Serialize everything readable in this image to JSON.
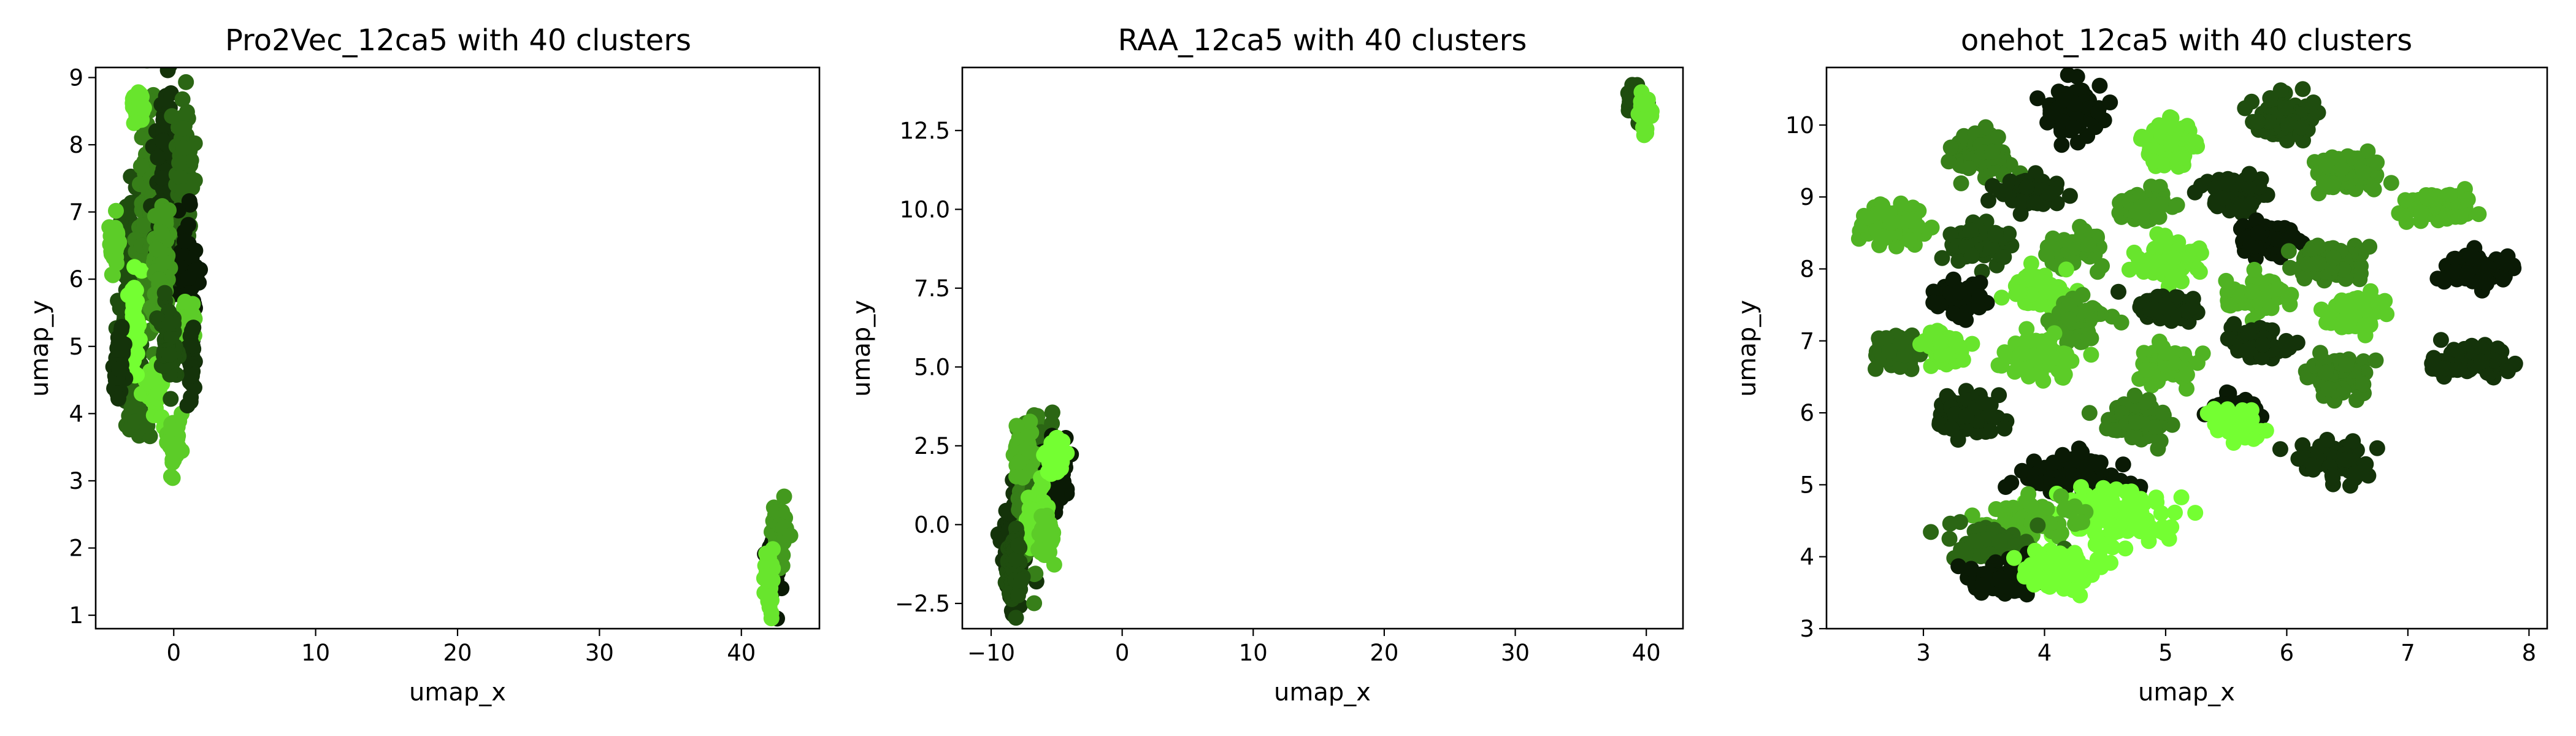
{
  "figure": {
    "background": "#ffffff"
  },
  "palette": [
    "#0a1a05",
    "#14330a",
    "#1f4d0f",
    "#2b6614",
    "#377f19",
    "#43991e",
    "#50b323",
    "#5ccc28",
    "#68e52d",
    "#74ff32"
  ],
  "chart_data": [
    {
      "type": "scatter",
      "title": "Pro2Vec_12ca5 with 40 clusters",
      "xlabel": "umap_x",
      "ylabel": "umap_y",
      "xlim": [
        -5.5,
        45.5
      ],
      "ylim": [
        0.8,
        9.15
      ],
      "xticks": [
        0,
        10,
        20,
        30,
        40
      ],
      "yticks": [
        1,
        2,
        3,
        4,
        5,
        6,
        7,
        8,
        9
      ],
      "grid": false,
      "legend": "none",
      "point_count_approx": 3300,
      "clusters": [
        {
          "x": -3.0,
          "y": 5.6,
          "sx": 0.45,
          "sy": 0.8,
          "n": 150,
          "c": 2
        },
        {
          "x": -1.8,
          "y": 6.8,
          "sx": 0.4,
          "sy": 0.9,
          "n": 140,
          "c": 4
        },
        {
          "x": -0.6,
          "y": 7.5,
          "sx": 0.35,
          "sy": 0.7,
          "n": 120,
          "c": 1
        },
        {
          "x": 0.8,
          "y": 7.4,
          "sx": 0.3,
          "sy": 0.6,
          "n": 110,
          "c": 3
        },
        {
          "x": 1.0,
          "y": 6.0,
          "sx": 0.3,
          "sy": 0.5,
          "n": 90,
          "c": 0
        },
        {
          "x": -2.5,
          "y": 8.55,
          "sx": 0.25,
          "sy": 0.1,
          "n": 45,
          "c": 8
        },
        {
          "x": -4.2,
          "y": 6.5,
          "sx": 0.15,
          "sy": 0.2,
          "n": 40,
          "c": 7
        },
        {
          "x": -2.5,
          "y": 4.0,
          "sx": 0.35,
          "sy": 0.2,
          "n": 60,
          "c": 3
        },
        {
          "x": -1.3,
          "y": 4.4,
          "sx": 0.3,
          "sy": 0.2,
          "n": 50,
          "c": 8
        },
        {
          "x": 0.0,
          "y": 3.6,
          "sx": 0.25,
          "sy": 0.2,
          "n": 45,
          "c": 7
        },
        {
          "x": -2.8,
          "y": 5.4,
          "sx": 0.2,
          "sy": 0.4,
          "n": 50,
          "c": 9
        },
        {
          "x": 1.0,
          "y": 5.3,
          "sx": 0.25,
          "sy": 0.3,
          "n": 50,
          "c": 7
        },
        {
          "x": 1.2,
          "y": 4.7,
          "sx": 0.15,
          "sy": 0.3,
          "n": 40,
          "c": 1
        },
        {
          "x": -1.0,
          "y": 6.2,
          "sx": 0.3,
          "sy": 0.5,
          "n": 80,
          "c": 5
        },
        {
          "x": -0.3,
          "y": 5.0,
          "sx": 0.3,
          "sy": 0.3,
          "n": 60,
          "c": 2
        },
        {
          "x": -3.8,
          "y": 4.8,
          "sx": 0.2,
          "sy": 0.3,
          "n": 40,
          "c": 1
        },
        {
          "x": 42.3,
          "y": 1.7,
          "sx": 0.3,
          "sy": 0.25,
          "n": 50,
          "c": 0
        },
        {
          "x": 42.7,
          "y": 2.2,
          "sx": 0.3,
          "sy": 0.25,
          "n": 50,
          "c": 5
        },
        {
          "x": 42.0,
          "y": 1.6,
          "sx": 0.2,
          "sy": 0.2,
          "n": 30,
          "c": 8
        }
      ]
    },
    {
      "type": "scatter",
      "title": "RAA_12ca5 with 40 clusters",
      "xlabel": "umap_x",
      "ylabel": "umap_y",
      "xlim": [
        -12.2,
        42.8
      ],
      "ylim": [
        -3.3,
        14.5
      ],
      "xticks": [
        -10,
        0,
        10,
        20,
        30,
        40
      ],
      "yticks": [
        -2.5,
        0.0,
        2.5,
        5.0,
        7.5,
        10.0,
        12.5
      ],
      "grid": false,
      "legend": "none",
      "point_count_approx": 1400,
      "clusters": [
        {
          "x": -8.0,
          "y": -0.5,
          "sx": 0.5,
          "sy": 0.9,
          "n": 120,
          "c": 1
        },
        {
          "x": -7.0,
          "y": 1.0,
          "sx": 0.5,
          "sy": 1.0,
          "n": 130,
          "c": 4
        },
        {
          "x": -6.0,
          "y": 1.8,
          "sx": 0.5,
          "sy": 0.6,
          "n": 100,
          "c": 3
        },
        {
          "x": -5.0,
          "y": 1.5,
          "sx": 0.4,
          "sy": 0.5,
          "n": 80,
          "c": 0
        },
        {
          "x": -7.5,
          "y": 2.3,
          "sx": 0.4,
          "sy": 0.4,
          "n": 60,
          "c": 6
        },
        {
          "x": -6.5,
          "y": 0.2,
          "sx": 0.4,
          "sy": 0.5,
          "n": 70,
          "c": 8
        },
        {
          "x": -5.2,
          "y": 2.2,
          "sx": 0.3,
          "sy": 0.3,
          "n": 50,
          "c": 9
        },
        {
          "x": -8.3,
          "y": -1.3,
          "sx": 0.3,
          "sy": 0.5,
          "n": 60,
          "c": 2
        },
        {
          "x": -5.8,
          "y": -0.5,
          "sx": 0.3,
          "sy": 0.4,
          "n": 50,
          "c": 7
        },
        {
          "x": 39.2,
          "y": 13.5,
          "sx": 0.3,
          "sy": 0.25,
          "n": 50,
          "c": 2
        },
        {
          "x": 39.8,
          "y": 13.1,
          "sx": 0.25,
          "sy": 0.25,
          "n": 40,
          "c": 8
        }
      ]
    },
    {
      "type": "scatter",
      "title": "onehot_12ca5 with 40 clusters",
      "xlabel": "umap_x",
      "ylabel": "umap_y",
      "xlim": [
        2.2,
        8.15
      ],
      "ylim": [
        3.0,
        10.8
      ],
      "xticks": [
        3,
        4,
        5,
        6,
        7,
        8
      ],
      "yticks": [
        3,
        4,
        5,
        6,
        7,
        8,
        9,
        10
      ],
      "grid": false,
      "legend": "none",
      "point_count_approx": 4000,
      "clusters": [
        {
          "x": 4.25,
          "y": 10.2,
          "sx": 0.12,
          "sy": 0.16,
          "n": 90,
          "c": 0
        },
        {
          "x": 5.95,
          "y": 10.1,
          "sx": 0.13,
          "sy": 0.14,
          "n": 90,
          "c": 2
        },
        {
          "x": 5.05,
          "y": 9.7,
          "sx": 0.11,
          "sy": 0.16,
          "n": 80,
          "c": 8
        },
        {
          "x": 3.45,
          "y": 9.6,
          "sx": 0.13,
          "sy": 0.12,
          "n": 80,
          "c": 4
        },
        {
          "x": 6.5,
          "y": 9.35,
          "sx": 0.13,
          "sy": 0.12,
          "n": 80,
          "c": 5
        },
        {
          "x": 3.9,
          "y": 9.05,
          "sx": 0.13,
          "sy": 0.1,
          "n": 70,
          "c": 1
        },
        {
          "x": 5.6,
          "y": 9.05,
          "sx": 0.12,
          "sy": 0.12,
          "n": 70,
          "c": 1
        },
        {
          "x": 4.8,
          "y": 8.9,
          "sx": 0.1,
          "sy": 0.12,
          "n": 60,
          "c": 5
        },
        {
          "x": 7.25,
          "y": 8.85,
          "sx": 0.15,
          "sy": 0.1,
          "n": 80,
          "c": 6
        },
        {
          "x": 2.75,
          "y": 8.6,
          "sx": 0.14,
          "sy": 0.12,
          "n": 80,
          "c": 6
        },
        {
          "x": 5.85,
          "y": 8.4,
          "sx": 0.12,
          "sy": 0.12,
          "n": 80,
          "c": 0
        },
        {
          "x": 3.45,
          "y": 8.35,
          "sx": 0.12,
          "sy": 0.14,
          "n": 70,
          "c": 2
        },
        {
          "x": 4.25,
          "y": 8.3,
          "sx": 0.12,
          "sy": 0.12,
          "n": 70,
          "c": 5
        },
        {
          "x": 5.05,
          "y": 8.1,
          "sx": 0.13,
          "sy": 0.14,
          "n": 80,
          "c": 8
        },
        {
          "x": 6.35,
          "y": 8.1,
          "sx": 0.13,
          "sy": 0.12,
          "n": 80,
          "c": 4
        },
        {
          "x": 7.55,
          "y": 8.0,
          "sx": 0.13,
          "sy": 0.12,
          "n": 80,
          "c": 0
        },
        {
          "x": 3.95,
          "y": 7.7,
          "sx": 0.12,
          "sy": 0.12,
          "n": 70,
          "c": 8
        },
        {
          "x": 5.75,
          "y": 7.65,
          "sx": 0.12,
          "sy": 0.12,
          "n": 70,
          "c": 6
        },
        {
          "x": 3.3,
          "y": 7.6,
          "sx": 0.11,
          "sy": 0.1,
          "n": 60,
          "c": 0
        },
        {
          "x": 5.0,
          "y": 7.45,
          "sx": 0.12,
          "sy": 0.1,
          "n": 60,
          "c": 1
        },
        {
          "x": 6.6,
          "y": 7.4,
          "sx": 0.13,
          "sy": 0.12,
          "n": 80,
          "c": 7
        },
        {
          "x": 4.3,
          "y": 7.25,
          "sx": 0.12,
          "sy": 0.12,
          "n": 60,
          "c": 5
        },
        {
          "x": 5.75,
          "y": 6.95,
          "sx": 0.12,
          "sy": 0.12,
          "n": 70,
          "c": 1
        },
        {
          "x": 2.75,
          "y": 6.85,
          "sx": 0.1,
          "sy": 0.12,
          "n": 50,
          "c": 3
        },
        {
          "x": 3.15,
          "y": 6.9,
          "sx": 0.09,
          "sy": 0.1,
          "n": 50,
          "c": 8
        },
        {
          "x": 3.95,
          "y": 6.75,
          "sx": 0.14,
          "sy": 0.14,
          "n": 80,
          "c": 7
        },
        {
          "x": 7.5,
          "y": 6.7,
          "sx": 0.15,
          "sy": 0.12,
          "n": 80,
          "c": 1
        },
        {
          "x": 5.0,
          "y": 6.65,
          "sx": 0.12,
          "sy": 0.13,
          "n": 60,
          "c": 6
        },
        {
          "x": 6.45,
          "y": 6.5,
          "sx": 0.13,
          "sy": 0.14,
          "n": 80,
          "c": 4
        },
        {
          "x": 3.35,
          "y": 6.0,
          "sx": 0.12,
          "sy": 0.13,
          "n": 80,
          "c": 1
        },
        {
          "x": 4.75,
          "y": 5.9,
          "sx": 0.12,
          "sy": 0.14,
          "n": 80,
          "c": 4
        },
        {
          "x": 5.55,
          "y": 6.05,
          "sx": 0.09,
          "sy": 0.1,
          "n": 50,
          "c": 0
        },
        {
          "x": 5.6,
          "y": 5.85,
          "sx": 0.1,
          "sy": 0.1,
          "n": 60,
          "c": 9
        },
        {
          "x": 6.4,
          "y": 5.35,
          "sx": 0.14,
          "sy": 0.14,
          "n": 80,
          "c": 1
        },
        {
          "x": 4.3,
          "y": 5.1,
          "sx": 0.22,
          "sy": 0.15,
          "n": 100,
          "c": 0
        },
        {
          "x": 4.55,
          "y": 4.6,
          "sx": 0.25,
          "sy": 0.2,
          "n": 100,
          "c": 9
        },
        {
          "x": 3.9,
          "y": 4.5,
          "sx": 0.22,
          "sy": 0.18,
          "n": 90,
          "c": 6
        },
        {
          "x": 3.6,
          "y": 4.15,
          "sx": 0.16,
          "sy": 0.14,
          "n": 80,
          "c": 3
        },
        {
          "x": 3.65,
          "y": 3.7,
          "sx": 0.15,
          "sy": 0.1,
          "n": 70,
          "c": 0
        },
        {
          "x": 4.15,
          "y": 3.85,
          "sx": 0.15,
          "sy": 0.16,
          "n": 80,
          "c": 9
        }
      ]
    }
  ]
}
